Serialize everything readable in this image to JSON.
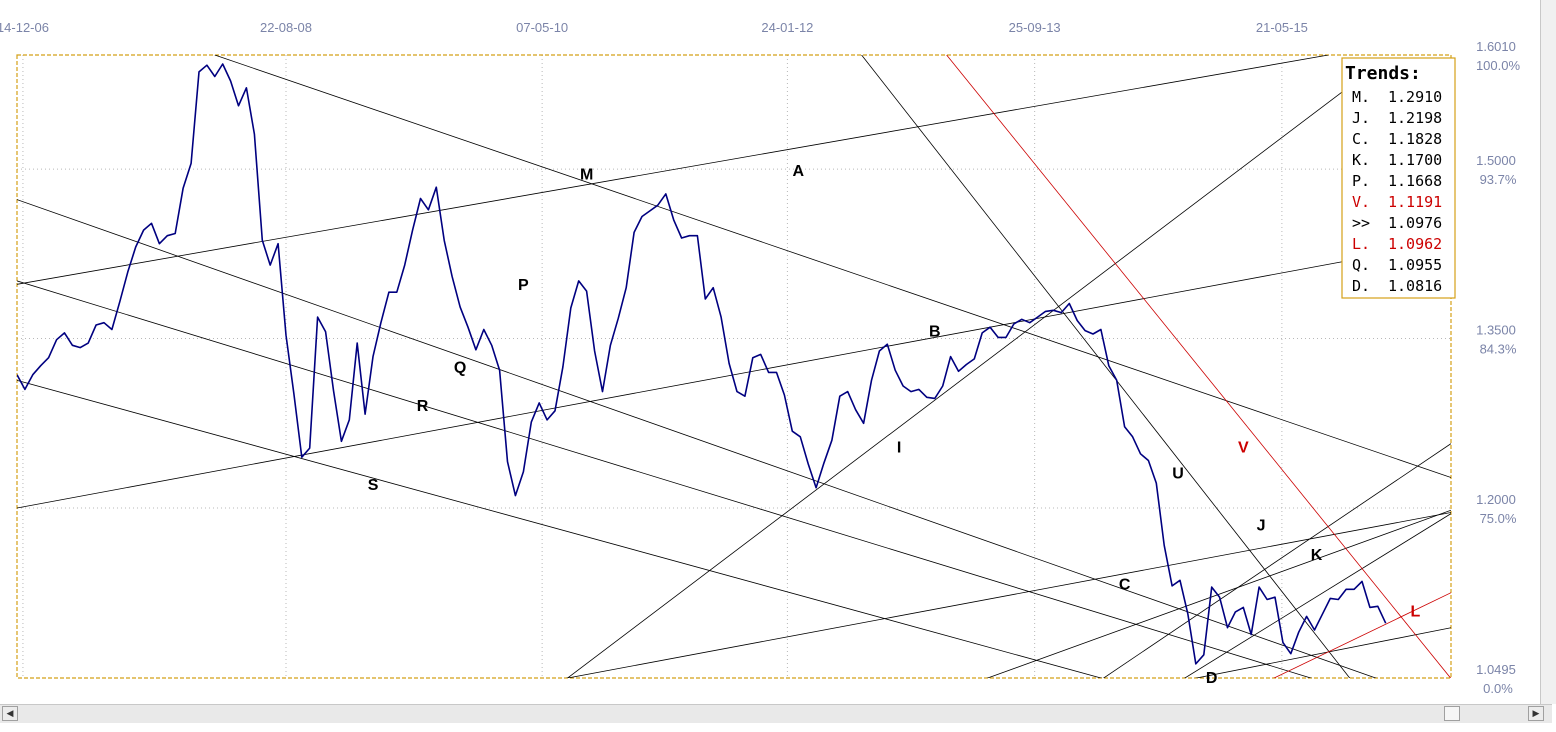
{
  "chart_data": {
    "type": "line",
    "series": [
      {
        "values": [
          [
            0.0,
            1.318
          ],
          [
            0.008,
            1.305
          ],
          [
            0.016,
            1.318
          ],
          [
            0.024,
            1.326
          ],
          [
            0.032,
            1.333
          ],
          [
            0.04,
            1.349
          ],
          [
            0.048,
            1.355
          ],
          [
            0.056,
            1.344
          ],
          [
            0.064,
            1.342
          ],
          [
            0.072,
            1.346
          ],
          [
            0.08,
            1.362
          ],
          [
            0.088,
            1.364
          ],
          [
            0.096,
            1.358
          ],
          [
            0.104,
            1.383
          ],
          [
            0.112,
            1.409
          ],
          [
            0.12,
            1.431
          ],
          [
            0.128,
            1.446
          ],
          [
            0.136,
            1.452
          ],
          [
            0.144,
            1.434
          ],
          [
            0.152,
            1.441
          ],
          [
            0.16,
            1.443
          ],
          [
            0.168,
            1.483
          ],
          [
            0.176,
            1.505
          ],
          [
            0.184,
            1.586
          ],
          [
            0.192,
            1.592
          ],
          [
            0.2,
            1.582
          ],
          [
            0.208,
            1.593
          ],
          [
            0.216,
            1.578
          ],
          [
            0.224,
            1.556
          ],
          [
            0.232,
            1.572
          ],
          [
            0.24,
            1.531
          ],
          [
            0.248,
            1.437
          ],
          [
            0.256,
            1.415
          ],
          [
            0.264,
            1.434
          ],
          [
            0.272,
            1.353
          ],
          [
            0.28,
            1.301
          ],
          [
            0.288,
            1.245
          ],
          [
            0.296,
            1.253
          ],
          [
            0.304,
            1.369
          ],
          [
            0.312,
            1.356
          ],
          [
            0.32,
            1.304
          ],
          [
            0.328,
            1.259
          ],
          [
            0.336,
            1.278
          ],
          [
            0.344,
            1.346
          ],
          [
            0.352,
            1.283
          ],
          [
            0.36,
            1.334
          ],
          [
            0.368,
            1.364
          ],
          [
            0.376,
            1.391
          ],
          [
            0.384,
            1.391
          ],
          [
            0.392,
            1.415
          ],
          [
            0.4,
            1.446
          ],
          [
            0.408,
            1.474
          ],
          [
            0.416,
            1.464
          ],
          [
            0.424,
            1.484
          ],
          [
            0.432,
            1.437
          ],
          [
            0.44,
            1.405
          ],
          [
            0.448,
            1.378
          ],
          [
            0.456,
            1.36
          ],
          [
            0.464,
            1.34
          ],
          [
            0.472,
            1.358
          ],
          [
            0.48,
            1.344
          ],
          [
            0.488,
            1.322
          ],
          [
            0.496,
            1.241
          ],
          [
            0.504,
            1.211
          ],
          [
            0.512,
            1.232
          ],
          [
            0.52,
            1.276
          ],
          [
            0.528,
            1.293
          ],
          [
            0.536,
            1.278
          ],
          [
            0.544,
            1.286
          ],
          [
            0.552,
            1.325
          ],
          [
            0.56,
            1.377
          ],
          [
            0.568,
            1.401
          ],
          [
            0.576,
            1.392
          ],
          [
            0.584,
            1.339
          ],
          [
            0.592,
            1.303
          ],
          [
            0.6,
            1.344
          ],
          [
            0.608,
            1.368
          ],
          [
            0.616,
            1.395
          ],
          [
            0.624,
            1.444
          ],
          [
            0.632,
            1.458
          ],
          [
            0.64,
            1.463
          ],
          [
            0.648,
            1.468
          ],
          [
            0.656,
            1.478
          ],
          [
            0.664,
            1.455
          ],
          [
            0.672,
            1.439
          ],
          [
            0.68,
            1.441
          ],
          [
            0.688,
            1.441
          ],
          [
            0.696,
            1.385
          ],
          [
            0.704,
            1.395
          ],
          [
            0.712,
            1.369
          ],
          [
            0.72,
            1.328
          ],
          [
            0.728,
            1.303
          ],
          [
            0.736,
            1.299
          ],
          [
            0.744,
            1.333
          ],
          [
            0.752,
            1.336
          ],
          [
            0.76,
            1.32
          ],
          [
            0.768,
            1.32
          ],
          [
            0.776,
            1.3
          ],
          [
            0.784,
            1.268
          ],
          [
            0.792,
            1.263
          ],
          [
            0.8,
            1.239
          ],
          [
            0.808,
            1.218
          ],
          [
            0.816,
            1.24
          ],
          [
            0.824,
            1.26
          ],
          [
            0.832,
            1.299
          ],
          [
            0.84,
            1.303
          ],
          [
            0.848,
            1.287
          ],
          [
            0.856,
            1.275
          ],
          [
            0.864,
            1.313
          ],
          [
            0.872,
            1.339
          ],
          [
            0.88,
            1.345
          ],
          [
            0.888,
            1.322
          ],
          [
            0.896,
            1.308
          ],
          [
            0.904,
            1.303
          ],
          [
            0.912,
            1.305
          ],
          [
            0.92,
            1.298
          ],
          [
            0.928,
            1.297
          ],
          [
            0.936,
            1.308
          ],
          [
            0.944,
            1.334
          ],
          [
            0.952,
            1.321
          ],
          [
            0.96,
            1.327
          ],
          [
            0.968,
            1.332
          ],
          [
            0.976,
            1.355
          ],
          [
            0.984,
            1.36
          ],
          [
            0.992,
            1.351
          ],
          [
            1.0,
            1.351
          ],
          [
            1.008,
            1.363
          ],
          [
            1.016,
            1.367
          ],
          [
            1.024,
            1.364
          ],
          [
            1.032,
            1.369
          ],
          [
            1.04,
            1.374
          ],
          [
            1.048,
            1.375
          ],
          [
            1.056,
            1.373
          ],
          [
            1.064,
            1.381
          ],
          [
            1.072,
            1.366
          ],
          [
            1.08,
            1.357
          ],
          [
            1.088,
            1.354
          ],
          [
            1.096,
            1.358
          ],
          [
            1.104,
            1.326
          ],
          [
            1.112,
            1.313
          ],
          [
            1.12,
            1.272
          ],
          [
            1.128,
            1.263
          ],
          [
            1.136,
            1.248
          ],
          [
            1.144,
            1.242
          ],
          [
            1.152,
            1.222
          ],
          [
            1.16,
            1.167
          ],
          [
            1.168,
            1.131
          ],
          [
            1.176,
            1.136
          ],
          [
            1.184,
            1.106
          ],
          [
            1.192,
            1.062
          ],
          [
            1.2,
            1.07
          ],
          [
            1.208,
            1.13
          ],
          [
            1.216,
            1.121
          ],
          [
            1.224,
            1.094
          ],
          [
            1.232,
            1.108
          ],
          [
            1.24,
            1.112
          ],
          [
            1.248,
            1.088
          ],
          [
            1.256,
            1.13
          ],
          [
            1.264,
            1.119
          ],
          [
            1.272,
            1.121
          ],
          [
            1.28,
            1.081
          ],
          [
            1.288,
            1.071
          ],
          [
            1.296,
            1.09
          ],
          [
            1.304,
            1.104
          ],
          [
            1.312,
            1.092
          ],
          [
            1.32,
            1.106
          ],
          [
            1.328,
            1.12
          ],
          [
            1.336,
            1.119
          ],
          [
            1.344,
            1.128
          ],
          [
            1.352,
            1.128
          ],
          [
            1.36,
            1.135
          ],
          [
            1.368,
            1.112
          ],
          [
            1.376,
            1.113
          ],
          [
            1.384,
            1.098
          ]
        ]
      }
    ],
    "x_ticks": [
      {
        "x": 0.006,
        "label": "14-12-06"
      },
      {
        "x": 0.272,
        "label": "22-08-08"
      },
      {
        "x": 0.531,
        "label": "07-05-10"
      },
      {
        "x": 0.779,
        "label": "24-01-12"
      },
      {
        "x": 1.029,
        "label": "25-09-13"
      },
      {
        "x": 1.279,
        "label": "21-05-15"
      }
    ],
    "xlim": [
      0.0,
      1.45
    ],
    "ylim": [
      1.0495,
      1.601
    ],
    "y_ticks": [
      {
        "y": 1.601,
        "price": "1.6010",
        "pct": "100.0%"
      },
      {
        "y": 1.5,
        "price": "1.5000",
        "pct": "93.7%"
      },
      {
        "y": 1.35,
        "price": "1.3500",
        "pct": "84.3%"
      },
      {
        "y": 1.2,
        "price": "1.2000",
        "pct": "75.0%"
      },
      {
        "y": 1.0495,
        "price": "1.0495",
        "pct": "0.0%"
      }
    ],
    "trend_lines": [
      {
        "id": "M",
        "color": "#000000",
        "p1": [
          0.2,
          1.601
        ],
        "p2": [
          1.45,
          1.227
        ]
      },
      {
        "id": "A",
        "color": "#000000",
        "p1": [
          0.0,
          1.398
        ],
        "p2": [
          1.326,
          1.601
        ]
      },
      {
        "id": "B",
        "color": "#000000",
        "p1": [
          0.0,
          1.2
        ],
        "p2": [
          1.34,
          1.418
        ]
      },
      {
        "id": "P",
        "color": "#000000",
        "p1": [
          0.0,
          1.473
        ],
        "p2": [
          1.45,
          1.026
        ]
      },
      {
        "id": "Q",
        "color": "#000000",
        "p1": [
          0.0,
          1.401
        ],
        "p2": [
          1.31,
          1.049
        ]
      },
      {
        "id": "S",
        "color": "#000000",
        "p1": [
          0.0,
          1.313
        ],
        "p2": [
          1.098,
          1.049
        ]
      },
      {
        "id": "I",
        "color": "#000000",
        "p1": [
          0.556,
          1.049
        ],
        "p2": [
          1.344,
          1.571
        ]
      },
      {
        "id": "U",
        "color": "#000000",
        "p1": [
          0.854,
          1.601
        ],
        "p2": [
          1.348,
          1.049
        ]
      },
      {
        "id": "C",
        "color": "#000000",
        "p1": [
          0.554,
          1.049
        ],
        "p2": [
          1.45,
          1.196
        ]
      },
      {
        "id": "J1",
        "color": "#000000",
        "p1": [
          1.098,
          1.049
        ],
        "p2": [
          1.45,
          1.257
        ]
      },
      {
        "id": "J2",
        "color": "#000000",
        "p1": [
          0.98,
          1.049
        ],
        "p2": [
          1.45,
          1.198
        ]
      },
      {
        "id": "K",
        "color": "#000000",
        "p1": [
          1.18,
          1.049
        ],
        "p2": [
          1.45,
          1.195
        ]
      },
      {
        "id": "D",
        "color": "#000000",
        "p1": [
          1.19,
          1.049
        ],
        "p2": [
          1.45,
          1.094
        ]
      },
      {
        "id": "V",
        "color": "#cc0000",
        "p1": [
          0.94,
          1.601
        ],
        "p2": [
          1.45,
          1.049
        ]
      },
      {
        "id": "L",
        "color": "#cc0000",
        "p1": [
          1.27,
          1.049
        ],
        "p2": [
          1.45,
          1.125
        ]
      }
    ],
    "letter_labels": [
      {
        "text": "M",
        "x": 0.576,
        "y": 1.491,
        "color": "#000000"
      },
      {
        "text": "A",
        "x": 0.79,
        "y": 1.494,
        "color": "#000000"
      },
      {
        "text": "P",
        "x": 0.512,
        "y": 1.393,
        "color": "#000000"
      },
      {
        "text": "B",
        "x": 0.928,
        "y": 1.352,
        "color": "#000000"
      },
      {
        "text": "Q",
        "x": 0.448,
        "y": 1.32,
        "color": "#000000"
      },
      {
        "text": "R",
        "x": 0.41,
        "y": 1.286,
        "color": "#000000"
      },
      {
        "text": "I",
        "x": 0.892,
        "y": 1.249,
        "color": "#000000"
      },
      {
        "text": "S",
        "x": 0.36,
        "y": 1.216,
        "color": "#000000"
      },
      {
        "text": "U",
        "x": 1.174,
        "y": 1.226,
        "color": "#000000"
      },
      {
        "text": "V",
        "x": 1.24,
        "y": 1.249,
        "color": "#cc0000"
      },
      {
        "text": "J",
        "x": 1.258,
        "y": 1.18,
        "color": "#000000"
      },
      {
        "text": "K",
        "x": 1.314,
        "y": 1.154,
        "color": "#000000"
      },
      {
        "text": "C",
        "x": 1.12,
        "y": 1.128,
        "color": "#000000"
      },
      {
        "text": "L",
        "x": 1.414,
        "y": 1.104,
        "color": "#cc0000"
      },
      {
        "text": "D",
        "x": 1.208,
        "y": 1.045,
        "color": "#000000"
      }
    ],
    "legend": {
      "title": "Trends:",
      "items": [
        {
          "label": "M.",
          "value": "1.2910",
          "color": "#000000"
        },
        {
          "label": "J.",
          "value": "1.2198",
          "color": "#000000"
        },
        {
          "label": "C.",
          "value": "1.1828",
          "color": "#000000"
        },
        {
          "label": "K.",
          "value": "1.1700",
          "color": "#000000"
        },
        {
          "label": "P.",
          "value": "1.1668",
          "color": "#000000"
        },
        {
          "label": "V.",
          "value": "1.1191",
          "color": "#cc0000"
        },
        {
          "label": ">>",
          "value": "1.0976",
          "color": "#000000"
        },
        {
          "label": "L.",
          "value": "1.0962",
          "color": "#cc0000"
        },
        {
          "label": "Q.",
          "value": "1.0955",
          "color": "#000000"
        },
        {
          "label": "D.",
          "value": "1.0816",
          "color": "#000000"
        }
      ]
    },
    "colors": {
      "price_line": "#000080",
      "frame": "#d4a017",
      "grid": "#b8b8b8",
      "axis_text": "#7b84a8",
      "red": "#cc0000"
    },
    "grid": true
  },
  "scrollbar": {
    "left_arrow": "◀",
    "right_arrow": "▶"
  }
}
